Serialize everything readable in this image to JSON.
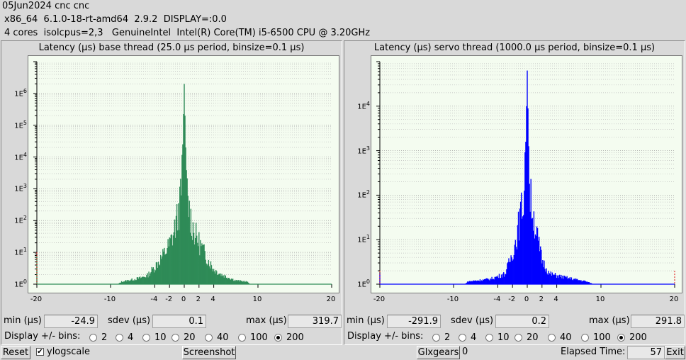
{
  "header": {
    "line1": "05Jun2024 cnc cnc",
    "line2": "x86_64  6.1.0-18-rt-amd64  2.9.2  DISPLAY=:0.0",
    "line3": "4 cores  isolcpus=2,3   GenuineIntel  Intel(R) Core(TM) i5-6500 CPU @ 3.20GHz"
  },
  "base": {
    "title": "Latency (µs) base thread (25.0 µs period, binsize=0.1 µs)",
    "min_label": "min (µs)",
    "min_value": "-24.9",
    "sdev_label": "sdev (µs)",
    "sdev_value": "0.1",
    "max_label": "max (µs)",
    "max_value": "319.7"
  },
  "servo": {
    "title": "Latency (µs) servo thread (1000.0 µs period, binsize=0.1 µs)",
    "min_label": "min (µs)",
    "min_value": "-291.9",
    "sdev_label": "sdev (µs)",
    "sdev_value": "0.2",
    "max_label": "max (µs)",
    "max_value": "291.8"
  },
  "bins": {
    "label": "Display +/- bins:",
    "options": [
      "2",
      "4",
      "10",
      "20",
      "40",
      "100",
      "200"
    ],
    "selected": "200"
  },
  "footer": {
    "reset": "Reset",
    "ylogscale": "ylogscale",
    "ylogscale_checked": true,
    "screenshot": "Screenshot",
    "glxgears": "Glxgears",
    "glxgears_value": "0",
    "elapsed_label": "Elapsed Time:",
    "elapsed_value": "57",
    "exit": "Exit"
  },
  "chart_data": [
    {
      "type": "bar",
      "title": "Latency (µs) base thread (25.0 µs period, binsize=0.1 µs)",
      "color": "#2e8b57",
      "yscale": "log",
      "ylim_decades": [
        0,
        6.3
      ],
      "y_ticks": [
        "1E0",
        "1E1",
        "1E2",
        "1E3",
        "1E4",
        "1E5",
        "1E6"
      ],
      "xlim": [
        -20,
        20
      ],
      "x_ticks": [
        "-20",
        "-10",
        "-4",
        "-2",
        "0",
        "2",
        "4",
        "10",
        "20"
      ],
      "envelope_decades": [
        [
          -20,
          1.0
        ],
        [
          -19.9,
          0
        ],
        [
          -9,
          0
        ],
        [
          -8.5,
          0.1
        ],
        [
          -6,
          0.25
        ],
        [
          -5,
          0.35
        ],
        [
          -4,
          0.7
        ],
        [
          -3,
          1.1
        ],
        [
          -2,
          1.6
        ],
        [
          -1.5,
          2.0
        ],
        [
          -1,
          2.6
        ],
        [
          -0.5,
          3.4
        ],
        [
          -0.2,
          4.4
        ],
        [
          0,
          6.3
        ],
        [
          0.2,
          4.3
        ],
        [
          0.5,
          3.3
        ],
        [
          1,
          2.5
        ],
        [
          1.5,
          2.0
        ],
        [
          2,
          1.7
        ],
        [
          3,
          1.1
        ],
        [
          4,
          0.6
        ],
        [
          5,
          0.4
        ],
        [
          7,
          0.15
        ],
        [
          8.5,
          0.1
        ],
        [
          9,
          0
        ]
      ]
    },
    {
      "type": "bar",
      "title": "Latency (µs) servo thread (1000.0 µs period, binsize=0.1 µs)",
      "color": "#0000ff",
      "yscale": "log",
      "ylim_decades": [
        0,
        4.8
      ],
      "y_ticks": [
        "1E0",
        "1E1",
        "1E2",
        "1E3",
        "1E4"
      ],
      "xlim": [
        -20,
        20
      ],
      "x_ticks": [
        "-20",
        "-10",
        "-4",
        "-2",
        "0",
        "2",
        "4",
        "10",
        "20"
      ],
      "envelope_decades": [
        [
          -20,
          0.3
        ],
        [
          -19.9,
          0
        ],
        [
          -8.5,
          0
        ],
        [
          -8,
          0.08
        ],
        [
          -5,
          0.15
        ],
        [
          -3,
          0.3
        ],
        [
          -2,
          0.9
        ],
        [
          -1.5,
          1.3
        ],
        [
          -1,
          1.9
        ],
        [
          -0.5,
          2.5
        ],
        [
          -0.2,
          3.2
        ],
        [
          0,
          4.8
        ],
        [
          0.2,
          3.1
        ],
        [
          0.5,
          2.4
        ],
        [
          1,
          1.8
        ],
        [
          1.5,
          1.2
        ],
        [
          2,
          0.7
        ],
        [
          3,
          0.3
        ],
        [
          5,
          0.2
        ],
        [
          8,
          0.08
        ],
        [
          9,
          0
        ],
        [
          19.9,
          0
        ],
        [
          20,
          0.3
        ]
      ]
    }
  ]
}
